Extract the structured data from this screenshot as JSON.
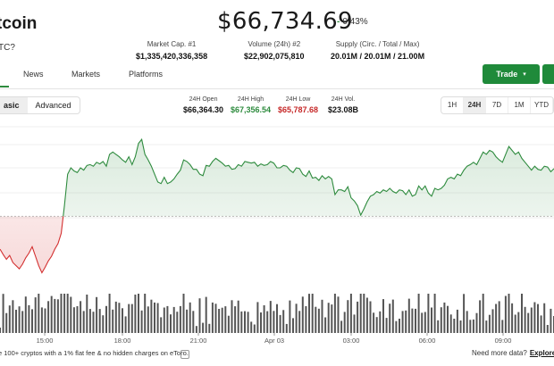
{
  "coin": {
    "title": "tcoin",
    "subtitle": "TC?"
  },
  "price": {
    "value": "$66,734.69",
    "change_arrow": "-",
    "change": "0.43%"
  },
  "stats": [
    {
      "label": "Market Cap. #1",
      "value": "$1,335,420,336,358"
    },
    {
      "label": "Volume (24h) #2",
      "value": "$22,902,075,810"
    },
    {
      "label": "Supply (Circ. / Total / Max)",
      "value": "20.01M / 20.01M / 21.00M"
    }
  ],
  "tabs": [
    "News",
    "Markets",
    "Platforms"
  ],
  "trade_button": {
    "label": "Trade",
    "caret": "▾"
  },
  "view_toggle": {
    "options": [
      "asic",
      "Advanced"
    ],
    "active": "asic"
  },
  "ohlc": [
    {
      "label": "24H Open",
      "value": "$66,364.30",
      "color": "#111111"
    },
    {
      "label": "24H High",
      "value": "$67,356.54",
      "color": "#2e8b3e"
    },
    {
      "label": "24H Low",
      "value": "$65,787.68",
      "color": "#c62828"
    },
    {
      "label": "24H Vol.",
      "value": "$23.08B",
      "color": "#111111"
    }
  ],
  "ranges": {
    "options": [
      "1H",
      "24H",
      "7D",
      "1M",
      "YTD"
    ],
    "active": "24H"
  },
  "chart_data": {
    "type": "area",
    "x_ticks": [
      "15:00",
      "18:00",
      "21:00",
      "Apr 03",
      "03:00",
      "06:00",
      "09:00"
    ],
    "baseline": 66364.3,
    "ylim": [
      65600,
      67500
    ],
    "colors": {
      "up": "#2e8b3e",
      "down": "#d32f2f",
      "volume": "#555555"
    },
    "values": [
      65950,
      65880,
      65820,
      65870,
      65780,
      65740,
      65700,
      65760,
      65840,
      65900,
      65980,
      65860,
      65740,
      65650,
      65720,
      65800,
      65860,
      65950,
      66020,
      66150,
      66500,
      66900,
      66980,
      66940,
      66920,
      66980,
      66950,
      67010,
      67020,
      67000,
      67050,
      67030,
      67060,
      67000,
      67150,
      67180,
      67150,
      67120,
      67080,
      67050,
      67120,
      67020,
      67120,
      67290,
      67340,
      67150,
      67080,
      67000,
      66900,
      66800,
      66780,
      66860,
      66780,
      66800,
      66840,
      66900,
      66950,
      67080,
      67060,
      67020,
      66960,
      66960,
      66900,
      66880,
      67010,
      67000,
      67060,
      67100,
      67070,
      67040,
      67000,
      67010,
      66960,
      66970,
      67020,
      67000,
      67060,
      67050,
      67040,
      67050,
      67000,
      67030,
      67010,
      67020,
      67060,
      67040,
      66980,
      66980,
      67010,
      67000,
      66950,
      66920,
      66980,
      66970,
      66900,
      66870,
      66940,
      66850,
      66860,
      66820,
      66880,
      66840,
      66870,
      66840,
      66640,
      66700,
      66700,
      66680,
      66740,
      66600,
      66560,
      66500,
      66380,
      66460,
      66550,
      66620,
      66640,
      66680,
      66660,
      66700,
      66680,
      66720,
      66680,
      66660,
      66700,
      66690,
      66640,
      66700,
      66620,
      66640,
      66750,
      66700,
      66750,
      66660,
      66620,
      66720,
      66700,
      66720,
      66760,
      66840,
      66860,
      66840,
      66900,
      66880,
      66950,
      67000,
      67020,
      67050,
      67020,
      67100,
      67180,
      67150,
      67200,
      67180,
      67120,
      67080,
      67050,
      67150,
      67250,
      67200,
      67150,
      67180,
      67100,
      67050,
      67000,
      66950,
      67000,
      66960,
      66950,
      67000,
      66990,
      66930,
      66970
    ]
  }
}
